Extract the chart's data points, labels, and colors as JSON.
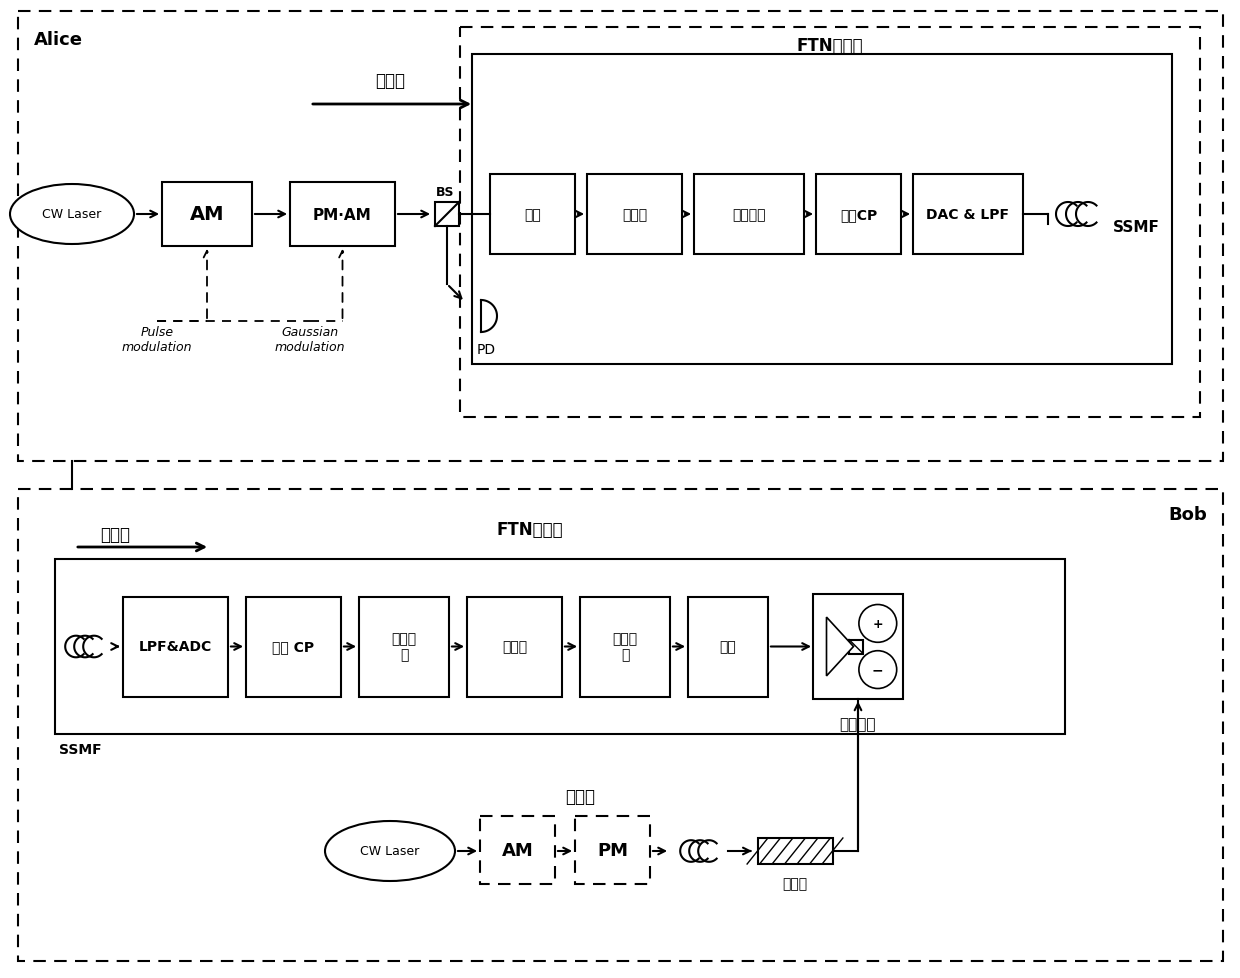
{
  "fig_width": 12.4,
  "fig_height": 9.79,
  "bg_color": "#ffffff",
  "alice_label": "Alice",
  "bob_label": "Bob",
  "ftn_tx_label": "FTN发送端",
  "ftn_rx_label": "FTN接收端",
  "signal_light": "信号光",
  "pulse_mod": "Pulse\nmodulation",
  "gaussian_mod": "Gaussian\nmodulation",
  "pd_label": "PD",
  "ssmf_label": "SSMF",
  "local_osc": "本振光",
  "isolator_label": "隔离器",
  "zero_diff": "零差检测",
  "bs_label": "BS",
  "tx_blocks": [
    "调制",
    "上采样",
    "成型滤波",
    "加入CP",
    "DAC & LPF"
  ],
  "rx_blocks": [
    "LPF&ADC",
    "移去 CP",
    "匹配滤\n波",
    "下采样",
    "迭代检\n测",
    "解调"
  ],
  "am_label": "AM",
  "pm_am_label": "PM·AM",
  "cw_laser_label": "CW Laser",
  "pm_label": "PM"
}
